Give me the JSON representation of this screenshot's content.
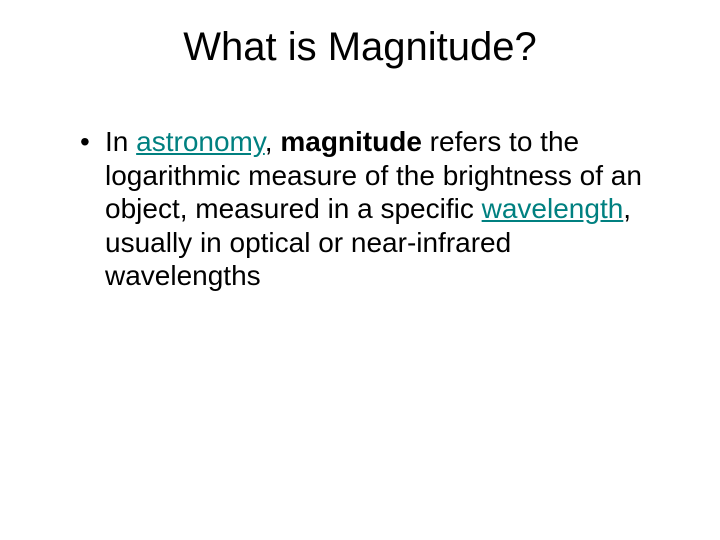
{
  "title": "What is Magnitude?",
  "bullet": {
    "part1": "In ",
    "link1": "astronomy",
    "part2": ", ",
    "bold": "magnitude",
    "part3": " refers to the logarithmic measure of the brightness of an object, measured in a specific ",
    "link2": "wavelength",
    "part4": ", usually in optical or near-infrared wavelengths"
  },
  "colors": {
    "background": "#ffffff",
    "text": "#000000",
    "link": "#008080"
  },
  "typography": {
    "title_fontsize": 40,
    "body_fontsize": 28,
    "font_family": "Arial"
  }
}
